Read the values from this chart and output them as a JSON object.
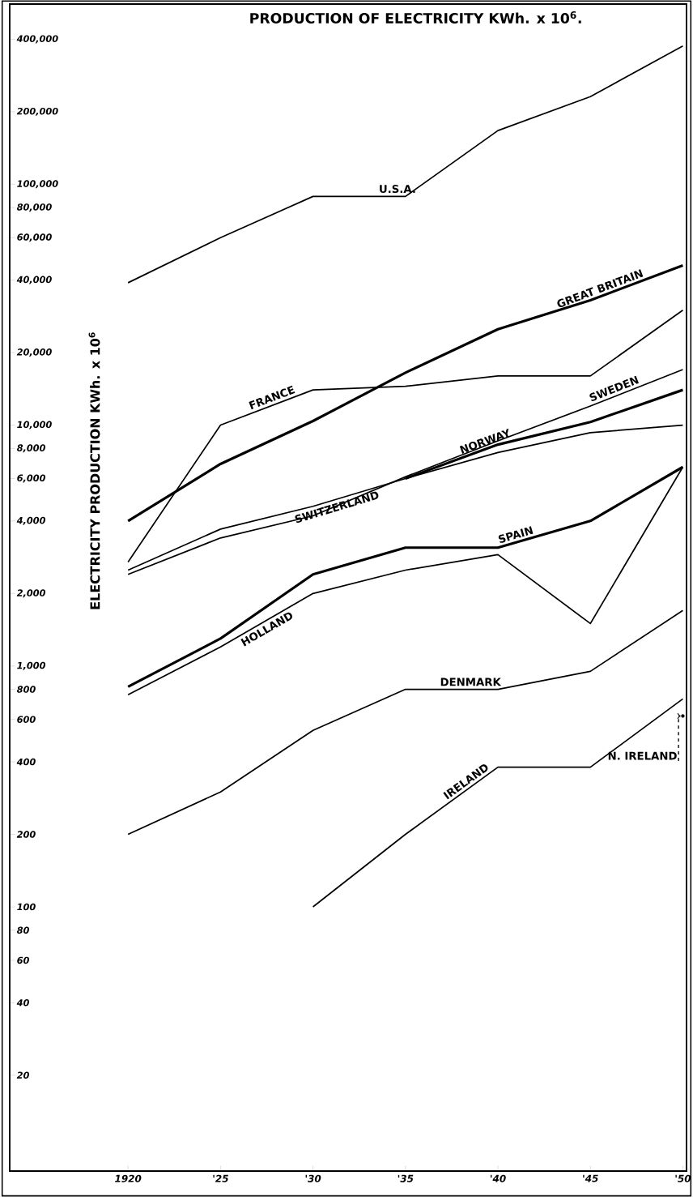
{
  "chart_data": {
    "type": "line",
    "title": "PRODUCTION OF ELECTRICITY KWh. x 10$^{6}$.",
    "ylabel": "ELECTRICITY PRODUCTION KWh. x 10$^{6}$",
    "x": [
      1920,
      1925,
      1930,
      1935,
      1940,
      1945,
      1950
    ],
    "xlim": [
      1913.6,
      1950.2
    ],
    "xticks": [
      1920,
      {
        "value": 1925,
        "label": "'25"
      },
      {
        "value": 1930,
        "label": "'30"
      },
      {
        "value": 1935,
        "label": "'35"
      },
      {
        "value": 1940,
        "label": "'40"
      },
      {
        "value": 1945,
        "label": "'45"
      },
      {
        "value": 1950,
        "label": "'50"
      }
    ],
    "log": true,
    "ylim": [
      8,
      560000
    ],
    "yticks": [
      20,
      40,
      60,
      80,
      100,
      200,
      400,
      600,
      800,
      {
        "value": 1000,
        "label": "1,000"
      },
      {
        "value": 2000,
        "label": "2,000"
      },
      {
        "value": 4000,
        "label": "4,000"
      },
      {
        "value": 6000,
        "label": "6,000"
      },
      {
        "value": 8000,
        "label": "8,000"
      },
      {
        "value": 10000,
        "label": "10,000"
      },
      {
        "value": 20000,
        "label": "20,000"
      },
      {
        "value": 40000,
        "label": "40,000"
      },
      {
        "value": 60000,
        "label": "60,000"
      },
      {
        "value": 80000,
        "label": "80,000"
      },
      {
        "value": 100000,
        "label": "100,000"
      },
      {
        "value": 200000,
        "label": "200,000"
      },
      {
        "value": 400000,
        "label": "400,000"
      }
    ],
    "marker": "none",
    "line_style": "solid",
    "grid": false,
    "legend": false,
    "series": [
      {
        "name": "U.S.A.",
        "color": "#000000",
        "values": [
          39000,
          60000,
          89000,
          89000,
          167000,
          231000,
          375000
        ]
      },
      {
        "name": "GREAT BRITAIN",
        "color": "#000000",
        "values": [
          4000,
          6900,
          10400,
          16500,
          25000,
          33000,
          46000
        ]
      },
      {
        "name": "FRANCE",
        "color": "#000000",
        "values": [
          2700,
          10000,
          14000,
          14500,
          16000,
          16000,
          30000
        ]
      },
      {
        "name": "NORWAY",
        "color": "#000000",
        "values": [
          null,
          null,
          null,
          6000,
          8300,
          10300,
          14000
        ]
      },
      {
        "name": "SWEDEN",
        "color": "#000000",
        "values": [
          2400,
          3400,
          4200,
          6100,
          8600,
          12000,
          17000
        ]
      },
      {
        "name": "SWITZERLAND",
        "color": "#000000",
        "values": [
          2500,
          3700,
          4600,
          6000,
          7700,
          9300,
          10000
        ]
      },
      {
        "name": "SPAIN",
        "color": "#000000",
        "values": [
          820,
          1300,
          2400,
          3100,
          3100,
          4000,
          6700
        ]
      },
      {
        "name": "HOLLAND",
        "color": "#000000",
        "values": [
          760,
          1200,
          2000,
          2500,
          2900,
          1500,
          6700
        ]
      },
      {
        "name": "DENMARK",
        "color": "#000000",
        "values": [
          200,
          300,
          540,
          800,
          800,
          950,
          1700
        ]
      },
      {
        "name": "IRELAND",
        "color": "#000000",
        "values": [
          null,
          null,
          100,
          200,
          380,
          380,
          730
        ]
      }
    ],
    "annotations": [
      {
        "text": "N. IRELAND",
        "x": 1950,
        "y": 620
      }
    ]
  }
}
